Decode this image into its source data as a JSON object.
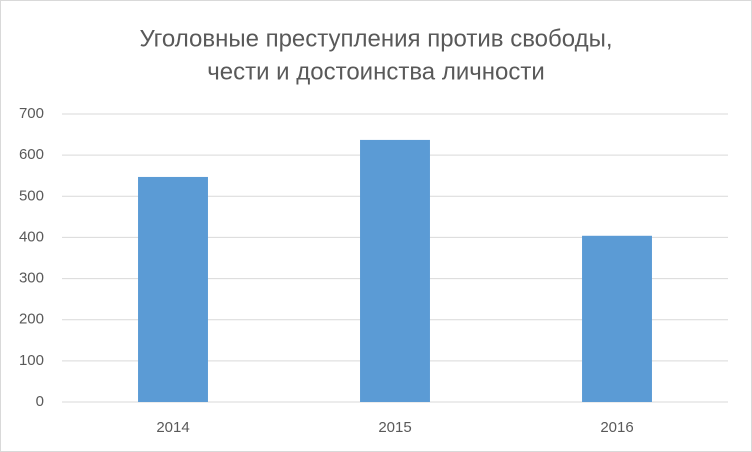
{
  "chart_data": {
    "type": "bar",
    "title": [
      "Уголовные преступления против свободы,",
      "чести и достоинства личности"
    ],
    "categories": [
      "2014",
      "2015",
      "2016"
    ],
    "values": [
      547,
      637,
      404
    ],
    "color": "#5b9bd5",
    "ylim": [
      0,
      700
    ],
    "yticks": [
      0,
      100,
      200,
      300,
      400,
      500,
      600,
      700
    ],
    "grid": true
  }
}
